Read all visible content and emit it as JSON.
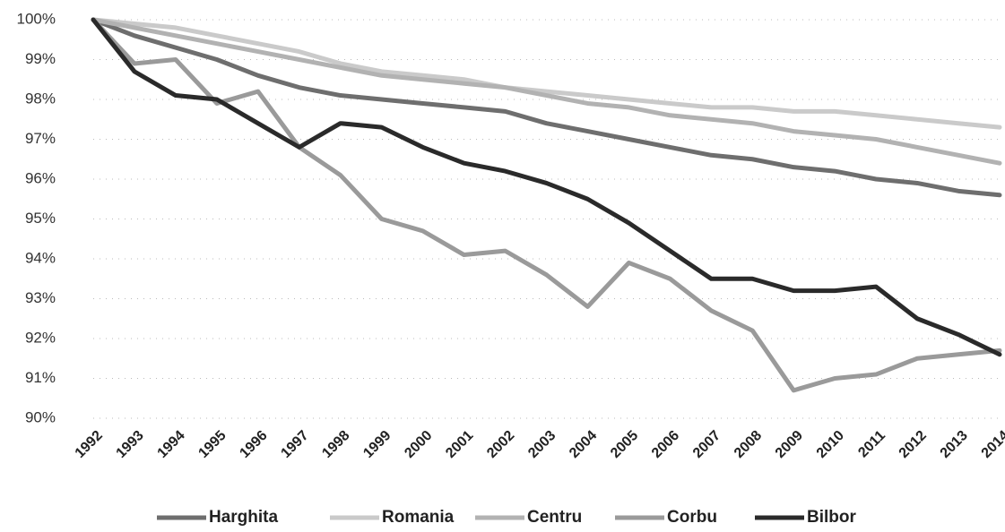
{
  "chart_data": {
    "type": "line",
    "categories": [
      "1992",
      "1993",
      "1994",
      "1995",
      "1996",
      "1997",
      "1998",
      "1999",
      "2000",
      "2001",
      "2002",
      "2003",
      "2004",
      "2005",
      "2006",
      "2007",
      "2008",
      "2009",
      "2010",
      "2011",
      "2012",
      "2013",
      "2014"
    ],
    "series": [
      {
        "name": "Harghita",
        "color": "#6e6e6e",
        "values": [
          100,
          99.6,
          99.3,
          99.0,
          98.6,
          98.3,
          98.1,
          98.0,
          97.9,
          97.8,
          97.7,
          97.4,
          97.2,
          97.0,
          96.8,
          96.6,
          96.5,
          96.3,
          96.2,
          96.0,
          95.9,
          95.7,
          95.6
        ]
      },
      {
        "name": "Romania",
        "color": "#cacaca",
        "values": [
          100,
          99.9,
          99.8,
          99.6,
          99.4,
          99.2,
          98.9,
          98.7,
          98.6,
          98.5,
          98.3,
          98.2,
          98.1,
          98.0,
          97.9,
          97.8,
          97.8,
          97.7,
          97.7,
          97.6,
          97.5,
          97.4,
          97.3
        ]
      },
      {
        "name": "Centru",
        "color": "#b2b2b2",
        "values": [
          100,
          99.8,
          99.6,
          99.4,
          99.2,
          99.0,
          98.8,
          98.6,
          98.5,
          98.4,
          98.3,
          98.1,
          97.9,
          97.8,
          97.6,
          97.5,
          97.4,
          97.2,
          97.1,
          97.0,
          96.8,
          96.6,
          96.4
        ]
      },
      {
        "name": "Corbu",
        "color": "#9a9a9a",
        "values": [
          100,
          98.9,
          99.0,
          97.9,
          98.2,
          96.8,
          96.1,
          95.0,
          94.7,
          94.1,
          94.2,
          93.6,
          92.8,
          93.9,
          93.5,
          92.7,
          92.2,
          90.7,
          91.0,
          91.1,
          91.5,
          91.6,
          91.7
        ]
      },
      {
        "name": "Bilbor",
        "color": "#2a2a2a",
        "values": [
          100,
          98.7,
          98.1,
          98.0,
          97.4,
          96.8,
          97.4,
          97.3,
          96.8,
          96.4,
          96.2,
          95.9,
          95.5,
          94.9,
          94.2,
          93.5,
          93.5,
          93.2,
          93.2,
          93.3,
          92.5,
          92.1,
          91.6
        ]
      }
    ],
    "ylim": [
      90,
      100
    ],
    "yticks": [
      {
        "value": 90,
        "label": "90%"
      },
      {
        "value": 91,
        "label": "91%"
      },
      {
        "value": 92,
        "label": "92%"
      },
      {
        "value": 93,
        "label": "93%"
      },
      {
        "value": 94,
        "label": "94%"
      },
      {
        "value": 95,
        "label": "95%"
      },
      {
        "value": 96,
        "label": "96%"
      },
      {
        "value": 97,
        "label": "97%"
      },
      {
        "value": 98,
        "label": "98%"
      },
      {
        "value": 99,
        "label": "99%"
      },
      {
        "value": 100,
        "label": "100%"
      }
    ],
    "grid": true,
    "legend": "bottom"
  }
}
